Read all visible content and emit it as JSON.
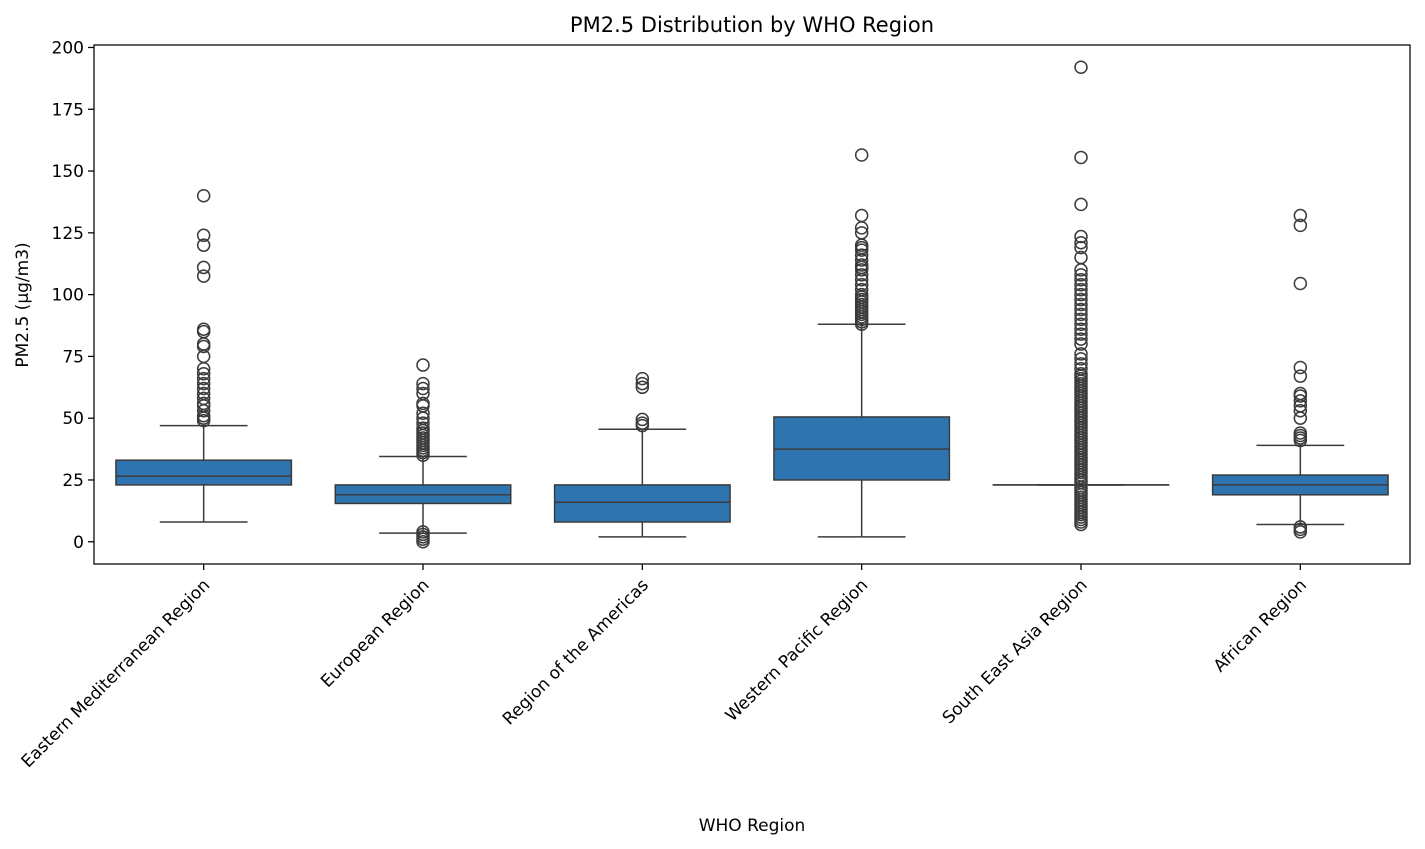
{
  "chart_data": {
    "type": "box",
    "title": "PM2.5 Distribution by WHO Region",
    "xlabel": "WHO Region",
    "ylabel": "PM2.5 (μg/m3)",
    "ylim": [
      -9,
      201
    ],
    "yticks": [
      0,
      25,
      50,
      75,
      100,
      125,
      150,
      175,
      200
    ],
    "grid": false,
    "color": "#2e75b0",
    "edge_color": "#3b3b3b",
    "categories": [
      "Eastern Mediterranean Region",
      "European Region",
      "Region of the Americas",
      "Western Pacific Region",
      "South East Asia Region",
      "African Region"
    ],
    "boxes": [
      {
        "whisker_low": 8,
        "q1": 23,
        "median": 26.5,
        "q3": 33,
        "whisker_high": 47,
        "outliers": [
          49,
          50,
          51,
          53,
          55,
          56,
          58,
          60,
          62,
          64,
          66,
          68,
          70,
          75,
          79,
          80,
          85,
          86,
          107.5,
          111,
          120,
          124,
          140
        ]
      },
      {
        "whisker_low": 3.5,
        "q1": 15.5,
        "median": 19,
        "q3": 23,
        "whisker_high": 34.5,
        "outliers": [
          0,
          1,
          2,
          3,
          4,
          35,
          36,
          37,
          38,
          39,
          40,
          41,
          42,
          43,
          44,
          45,
          46,
          48,
          50,
          52,
          55,
          56,
          60,
          62,
          64,
          71.5
        ]
      },
      {
        "whisker_low": 2,
        "q1": 8,
        "median": 16,
        "q3": 23,
        "whisker_high": 45.5,
        "outliers": [
          47,
          48,
          49.5,
          62.5,
          64,
          66
        ]
      },
      {
        "whisker_low": 2,
        "q1": 25,
        "median": 37.5,
        "q3": 50.5,
        "whisker_high": 88,
        "outliers": [
          88,
          89,
          90,
          91,
          92,
          93,
          94,
          95,
          96,
          97,
          98,
          99,
          100,
          102,
          104,
          106,
          108,
          110,
          111,
          112,
          114,
          116,
          118,
          119,
          120,
          125,
          127,
          132,
          156.5
        ]
      },
      {
        "whisker_low": 23,
        "q1": 23,
        "median": 23,
        "q3": 23,
        "whisker_high": 23,
        "outliers": [
          7,
          8,
          9,
          10,
          11,
          12,
          13,
          14,
          15,
          16,
          17,
          18,
          19,
          20,
          21,
          22,
          24,
          25,
          26,
          27,
          28,
          29,
          30,
          31,
          32,
          33,
          34,
          35,
          36,
          37,
          38,
          39,
          40,
          41,
          42,
          43,
          44,
          45,
          46,
          47,
          48,
          49,
          50,
          51,
          52,
          53,
          54,
          55,
          56,
          57,
          58,
          59,
          60,
          61,
          62,
          63,
          64,
          65,
          66,
          67,
          68,
          70,
          72,
          74,
          76,
          80,
          82,
          84,
          86,
          88,
          90,
          92,
          94,
          96,
          98,
          100,
          102,
          104,
          106,
          108,
          110,
          115,
          119,
          121,
          123.5,
          136.5,
          155.5,
          192
        ]
      },
      {
        "whisker_low": 7,
        "q1": 19,
        "median": 23,
        "q3": 27,
        "whisker_high": 39,
        "outliers": [
          4,
          5,
          6,
          41,
          42,
          43,
          44,
          50,
          53,
          55,
          57,
          59,
          60,
          67,
          70.5,
          104.5,
          128,
          132
        ]
      }
    ]
  }
}
